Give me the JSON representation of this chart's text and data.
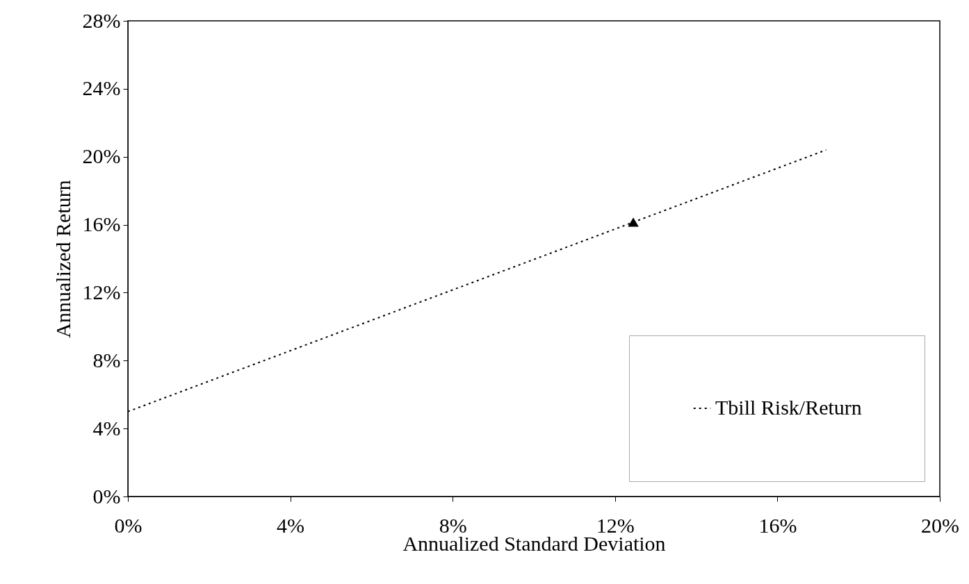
{
  "chart_data": {
    "type": "line",
    "xlabel": "Annualized Standard Deviation",
    "ylabel": "Annualized Return",
    "series": [
      {
        "name": "Tbill Risk/Return",
        "color": "#000000",
        "x": [
          0,
          17.2
        ],
        "values": [
          5.0,
          20.4
        ],
        "line_style": "dotted",
        "marker": "none"
      },
      {
        "type": "scatter",
        "color": "#000000",
        "x": [
          12.45
        ],
        "values": [
          16.15
        ],
        "marker": "triangle"
      }
    ],
    "xlim": [
      0,
      20
    ],
    "xticks": [
      {
        "value": 0,
        "label": "0%"
      },
      {
        "value": 4,
        "label": "4%"
      },
      {
        "value": 8,
        "label": "8%"
      },
      {
        "value": 12,
        "label": "12%"
      },
      {
        "value": 16,
        "label": "16%"
      },
      {
        "value": 20,
        "label": "20%"
      }
    ],
    "ylim": [
      0,
      28
    ],
    "yticks": [
      {
        "value": 0,
        "label": "0%"
      },
      {
        "value": 4,
        "label": "4%"
      },
      {
        "value": 8,
        "label": "8%"
      },
      {
        "value": 12,
        "label": "12%"
      },
      {
        "value": 16,
        "label": "16%"
      },
      {
        "value": 20,
        "label": "20%"
      },
      {
        "value": 24,
        "label": "24%"
      },
      {
        "value": 28,
        "label": "28%"
      }
    ],
    "grid": false,
    "legend": "bottom right"
  }
}
